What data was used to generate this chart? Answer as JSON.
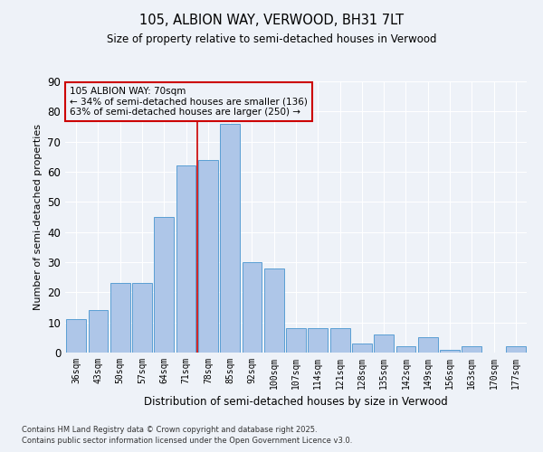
{
  "title1": "105, ALBION WAY, VERWOOD, BH31 7LT",
  "title2": "Size of property relative to semi-detached houses in Verwood",
  "xlabel": "Distribution of semi-detached houses by size in Verwood",
  "ylabel": "Number of semi-detached properties",
  "categories": [
    "36sqm",
    "43sqm",
    "50sqm",
    "57sqm",
    "64sqm",
    "71sqm",
    "78sqm",
    "85sqm",
    "92sqm",
    "100sqm",
    "107sqm",
    "114sqm",
    "121sqm",
    "128sqm",
    "135sqm",
    "142sqm",
    "149sqm",
    "156sqm",
    "163sqm",
    "170sqm",
    "177sqm"
  ],
  "values": [
    11,
    14,
    23,
    23,
    45,
    62,
    64,
    76,
    30,
    28,
    8,
    8,
    8,
    3,
    6,
    2,
    5,
    1,
    2,
    0,
    2
  ],
  "bar_color": "#aec6e8",
  "bar_edge_color": "#5a9fd4",
  "vline_x_pos": 5.5,
  "vline_color": "#cc0000",
  "annotation_text": "105 ALBION WAY: 70sqm\n← 34% of semi-detached houses are smaller (136)\n63% of semi-detached houses are larger (250) →",
  "annotation_box_color": "#cc0000",
  "ylim": [
    0,
    90
  ],
  "yticks": [
    0,
    10,
    20,
    30,
    40,
    50,
    60,
    70,
    80,
    90
  ],
  "bg_color": "#eef2f8",
  "grid_color": "#ffffff",
  "footer1": "Contains HM Land Registry data © Crown copyright and database right 2025.",
  "footer2": "Contains public sector information licensed under the Open Government Licence v3.0."
}
